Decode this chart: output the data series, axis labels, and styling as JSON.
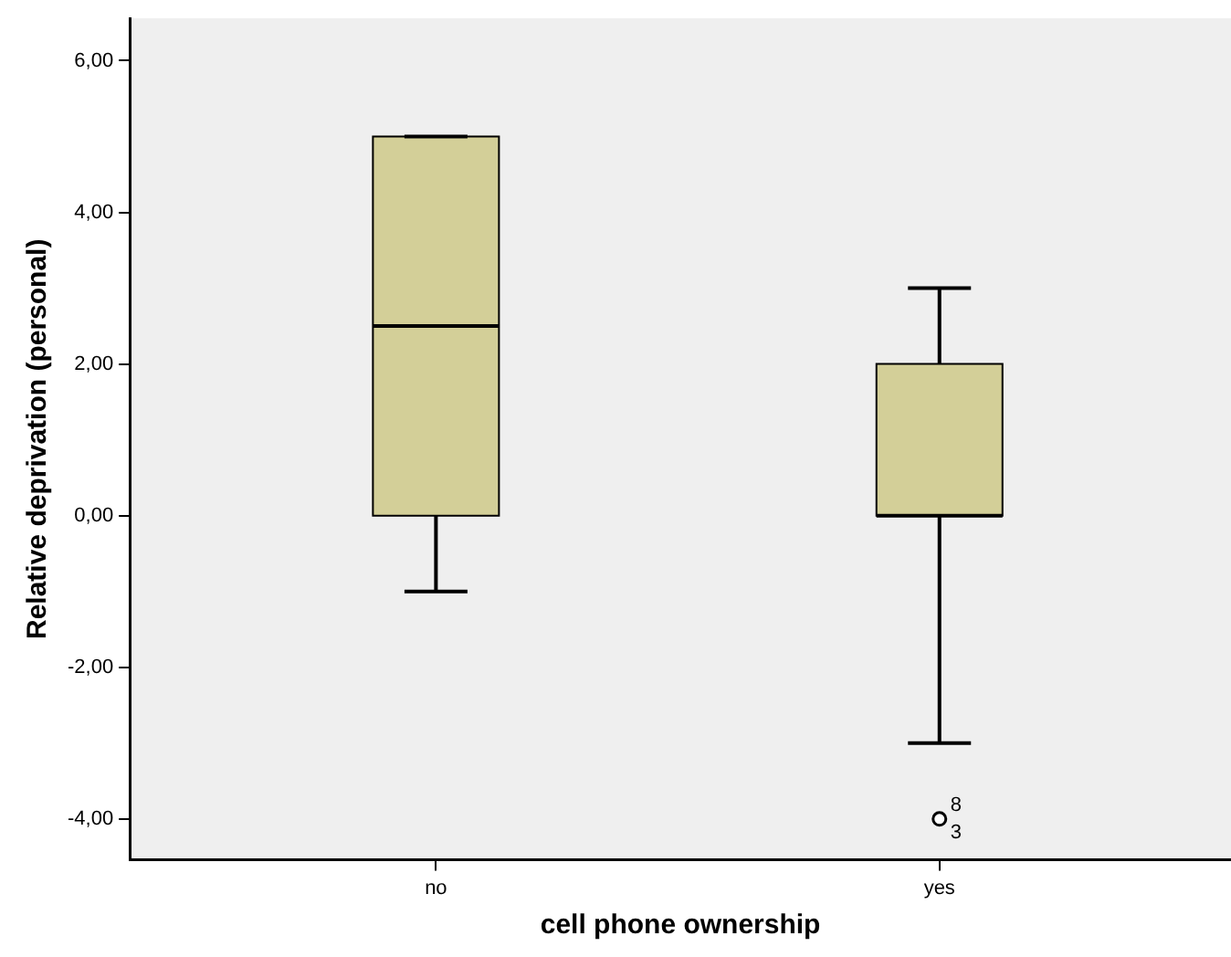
{
  "chart_data": {
    "type": "box",
    "xlabel": "cell phone ownership",
    "ylabel": "Relative deprivation (personal)",
    "categories": [
      "no",
      "yes"
    ],
    "boxes": [
      {
        "low": -1,
        "q1": 0,
        "median": 2.5,
        "q3": 5,
        "high": 5
      },
      {
        "low": -3,
        "q1": 0,
        "median": 0,
        "q3": 2,
        "high": 3,
        "outliers": [
          -4
        ]
      }
    ],
    "color": "#d3cf98",
    "ylim": [
      -4.54,
      6.56
    ],
    "yticks": [
      {
        "value": -4,
        "label": "-4,00"
      },
      {
        "value": -2,
        "label": "-2,00"
      },
      {
        "value": 0,
        "label": "0,00"
      },
      {
        "value": 2,
        "label": "2,00"
      },
      {
        "value": 4,
        "label": "4,00"
      },
      {
        "value": 6,
        "label": "6,00"
      }
    ],
    "grid": false,
    "legend": false,
    "annotations": [
      "8",
      "3"
    ]
  }
}
